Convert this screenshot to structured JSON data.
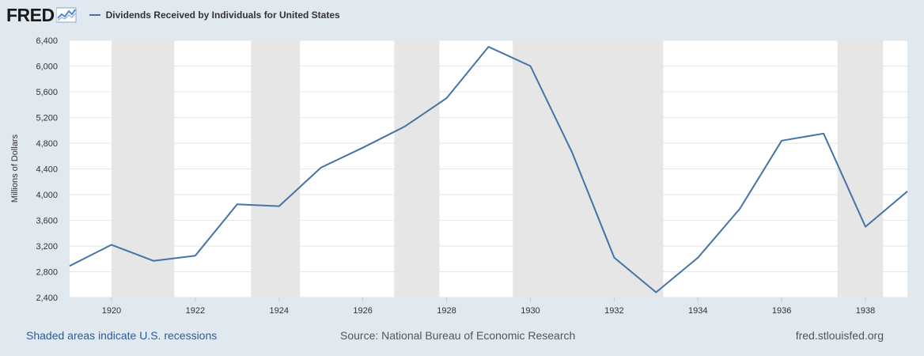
{
  "header": {
    "logo_text": "FRED",
    "legend_label": "Dividends Received by Individuals for United States"
  },
  "footer": {
    "recession_note": "Shaded areas indicate U.S. recessions",
    "source": "Source: National Bureau of Economic Research",
    "site": "fred.stlouisfed.org"
  },
  "colors": {
    "series": "#4572a7",
    "recession": "#e6e6e6",
    "background": "#e1e9f0"
  },
  "chart_data": {
    "type": "line",
    "title": "Dividends Received by Individuals for United States",
    "ylabel": "Millions of Dollars",
    "xlabel": "",
    "xlim": [
      1919,
      1939
    ],
    "ylim": [
      2400,
      6400
    ],
    "yticks": [
      2400,
      2800,
      3200,
      3600,
      4000,
      4400,
      4800,
      5200,
      5600,
      6000,
      6400
    ],
    "ytick_labels": [
      "2,400",
      "2,800",
      "3,200",
      "3,600",
      "4,000",
      "4,400",
      "4,800",
      "5,200",
      "5,600",
      "6,000",
      "6,400"
    ],
    "xticks": [
      1920,
      1922,
      1924,
      1926,
      1928,
      1930,
      1932,
      1934,
      1936,
      1938
    ],
    "xtick_labels": [
      "1920",
      "1922",
      "1924",
      "1926",
      "1928",
      "1930",
      "1932",
      "1934",
      "1936",
      "1938"
    ],
    "grid": true,
    "series": [
      {
        "name": "Dividends Received by Individuals for United States",
        "x": [
          1919,
          1920,
          1921,
          1922,
          1923,
          1924,
          1925,
          1926,
          1927,
          1928,
          1929,
          1930,
          1931,
          1932,
          1933,
          1934,
          1935,
          1936,
          1937,
          1938,
          1939
        ],
        "y": [
          2890,
          3220,
          2970,
          3050,
          3850,
          3820,
          4420,
          4730,
          5060,
          5500,
          6300,
          6000,
          4650,
          3020,
          2480,
          3020,
          3780,
          4840,
          4950,
          3500,
          4050
        ]
      }
    ],
    "recessions": [
      [
        1920.0,
        1921.5
      ],
      [
        1923.33,
        1924.5
      ],
      [
        1926.75,
        1927.83
      ],
      [
        1929.58,
        1933.17
      ],
      [
        1937.33,
        1938.42
      ]
    ]
  }
}
